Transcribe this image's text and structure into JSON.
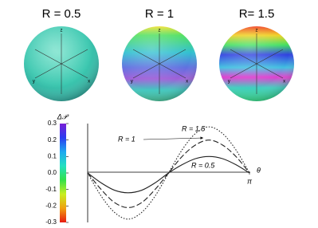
{
  "chart_data": {
    "type": "line",
    "sphere_titles": [
      "R = 0.5",
      "R = 1",
      "R= 1.5"
    ],
    "sphere_axes": [
      "z",
      "y",
      "x"
    ],
    "y_label": "Δ𝒫",
    "x_label": "θ",
    "colorbar_colors": [
      "#7a1fd6",
      "#2b3cf0",
      "#1ea8f0",
      "#22e0c0",
      "#33e04a",
      "#c8ee20",
      "#f0a010",
      "#e81a10"
    ],
    "x": [
      0,
      0.262,
      0.524,
      0.785,
      1.047,
      1.309,
      1.571,
      1.833,
      2.094,
      2.356,
      2.618,
      2.88,
      3.142
    ],
    "xlim": [
      0,
      3.142
    ],
    "xticks": [
      {
        "value": 3.142,
        "label": "π"
      }
    ],
    "ylim": [
      -0.3,
      0.3
    ],
    "yticks": [
      0.3,
      0.2,
      0.1,
      {
        "value": 0,
        "label": "0.0"
      },
      -0.1,
      -0.2,
      -0.3
    ],
    "grid": false,
    "series": [
      {
        "name": "R = 0.5",
        "color": "#222222",
        "dash": "none",
        "values": [
          0,
          -0.06,
          -0.105,
          -0.12,
          -0.105,
          -0.06,
          0,
          0.05,
          0.087,
          0.1,
          0.087,
          0.05,
          0
        ]
      },
      {
        "name": "R = 1",
        "color": "#222222",
        "dash": "7 3",
        "values": [
          0,
          -0.1,
          -0.18,
          -0.21,
          -0.18,
          -0.1,
          0,
          0.1,
          0.17,
          0.2,
          0.17,
          0.1,
          0
        ]
      },
      {
        "name": "R = 1.5",
        "color": "#222222",
        "dash": "1.5 2",
        "values": [
          0,
          -0.14,
          -0.24,
          -0.28,
          -0.24,
          -0.14,
          0,
          0.14,
          0.24,
          0.28,
          0.24,
          0.14,
          0
        ]
      }
    ]
  }
}
